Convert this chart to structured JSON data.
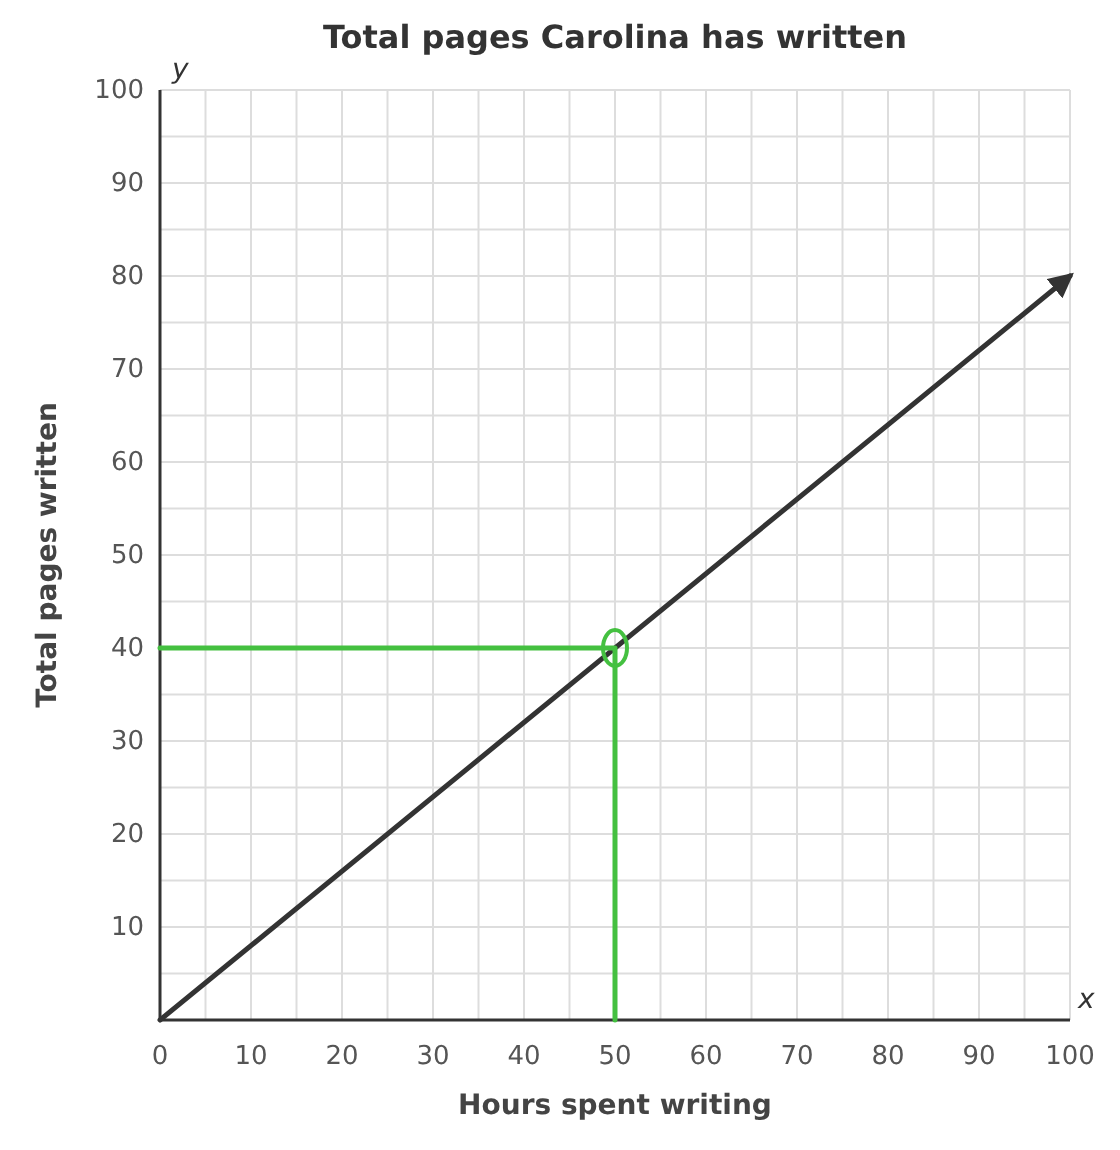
{
  "chart_data": {
    "type": "line",
    "title": "Total pages Carolina has written",
    "xlabel": "Hours spent writing",
    "ylabel": "Total pages written",
    "xlim": [
      0,
      100
    ],
    "ylim": [
      0,
      100
    ],
    "xticks": [
      0,
      {
        "value": 5,
        "label": null
      },
      10,
      {
        "value": 15,
        "label": null
      },
      20,
      {
        "value": 25,
        "label": null
      },
      30,
      {
        "value": 35,
        "label": null
      },
      40,
      {
        "value": 45,
        "label": null
      },
      50,
      {
        "value": 55,
        "label": null
      },
      60,
      {
        "value": 65,
        "label": null
      },
      70,
      {
        "value": 75,
        "label": null
      },
      80,
      {
        "value": 85,
        "label": null
      },
      90,
      {
        "value": 95,
        "label": null
      },
      100
    ],
    "yticks": [
      {
        "value": 5,
        "label": null
      },
      10,
      {
        "value": 15,
        "label": null
      },
      20,
      {
        "value": 25,
        "label": null
      },
      30,
      {
        "value": 35,
        "label": null
      },
      40,
      {
        "value": 45,
        "label": null
      },
      50,
      {
        "value": 55,
        "label": null
      },
      60,
      {
        "value": 65,
        "label": null
      },
      70,
      {
        "value": 75,
        "label": null
      },
      80,
      {
        "value": 85,
        "label": null
      },
      90,
      {
        "value": 95,
        "label": null
      },
      100
    ],
    "grid": true,
    "marker": "none",
    "line_style": "solid",
    "annotations": [
      "x",
      "y"
    ],
    "series": [
      {
        "color": "#333333",
        "x": [
          0,
          100
        ],
        "values": [
          0,
          80
        ]
      },
      {
        "color": "#44c040",
        "x": [
          0,
          50,
          50
        ],
        "values": [
          40,
          40,
          0
        ]
      },
      {
        "type": "scatter",
        "color": "#44c040",
        "x": [
          50
        ],
        "values": [
          40
        ],
        "marker": "circle"
      }
    ]
  }
}
